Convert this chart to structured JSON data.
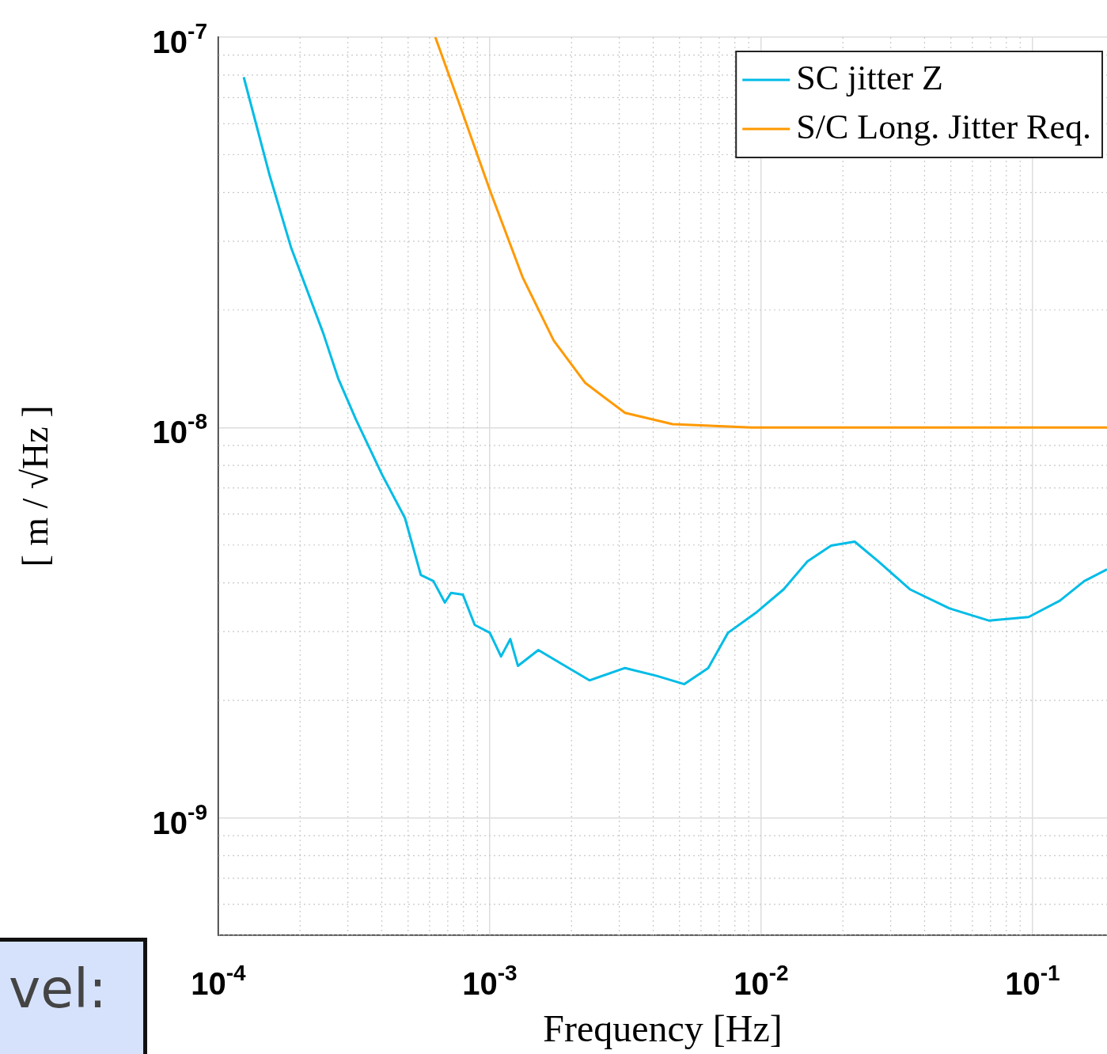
{
  "chart_data": {
    "type": "line",
    "xlabel": "Frequency [Hz]",
    "ylabel": "[ m / √Hz ]",
    "log": "xy",
    "grid": true,
    "legend": "top right",
    "marker": "none",
    "line_style": "solid",
    "xlim": [
      0.0001,
      0.188
    ],
    "ylim": [
      5e-10,
      1e-07
    ],
    "xticks": [
      {
        "value": 0.0001,
        "label": "10$^{-4}$"
      },
      {
        "value": 0.001,
        "label": "10$^{-3}$"
      },
      {
        "value": 0.01,
        "label": "10$^{-2}$"
      },
      {
        "value": 0.1,
        "label": "10$^{-1}$"
      }
    ],
    "yticks": [
      {
        "value": 1e-09,
        "label": "10$^{-9}$"
      },
      {
        "value": 1e-08,
        "label": "10$^{-8}$"
      },
      {
        "value": 1e-07,
        "label": "10$^{-7}$"
      }
    ],
    "annotations": [
      "vel:"
    ],
    "series": [
      {
        "name": "SC jitter Z",
        "color": "#00bce6",
        "x": [
          0.000124,
          0.000154,
          0.000185,
          0.000243,
          0.000277,
          0.000321,
          0.000401,
          0.000487,
          0.000557,
          0.00062,
          0.000683,
          0.00072,
          0.000796,
          0.00088,
          0.001,
          0.0011,
          0.00119,
          0.00127,
          0.00151,
          0.00184,
          0.00233,
          0.00315,
          0.00412,
          0.00521,
          0.00638,
          0.00755,
          0.00955,
          0.0121,
          0.0148,
          0.0181,
          0.0221,
          0.027,
          0.0353,
          0.0494,
          0.0692,
          0.0967,
          0.126,
          0.155,
          0.188
        ],
        "values": [
          7.9e-08,
          4.46e-08,
          2.9e-08,
          1.75e-08,
          1.33e-08,
          1.05e-08,
          7.57e-09,
          5.86e-09,
          4.19e-09,
          4.04e-09,
          3.56e-09,
          3.77e-09,
          3.73e-09,
          3.12e-09,
          2.98e-09,
          2.59e-09,
          2.87e-09,
          2.45e-09,
          2.69e-09,
          2.48e-09,
          2.25e-09,
          2.42e-09,
          2.31e-09,
          2.2e-09,
          2.42e-09,
          2.98e-09,
          3.35e-09,
          3.85e-09,
          4.54e-09,
          4.98e-09,
          5.1e-09,
          4.54e-09,
          3.85e-09,
          3.44e-09,
          3.2e-09,
          3.27e-09,
          3.6e-09,
          4.04e-09,
          4.33e-09
        ]
      },
      {
        "name": "S/C Long. Jitter Req.",
        "color": "#ff9900",
        "x": [
          0.00063,
          0.00077,
          0.001,
          0.00132,
          0.00172,
          0.00225,
          0.00315,
          0.00471,
          0.0092,
          0.188
        ],
        "values": [
          1e-07,
          6.79e-08,
          4.06e-08,
          2.43e-08,
          1.67e-08,
          1.3e-08,
          1.09e-08,
          1.02e-08,
          1e-08,
          1e-08
        ]
      }
    ]
  }
}
